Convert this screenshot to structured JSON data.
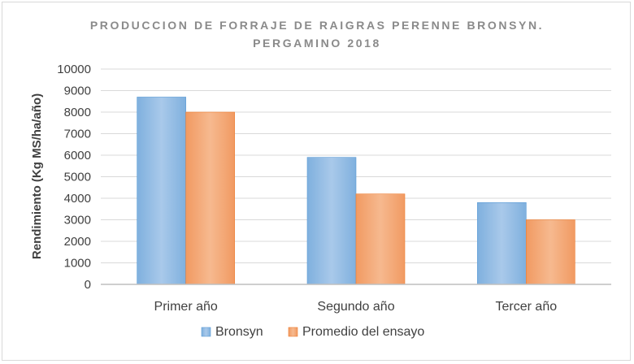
{
  "chart_data": {
    "type": "bar",
    "title_lines": [
      "PRODUCCION DE FORRAJE DE RAIGRAS PERENNE BRONSYN.",
      "PERGAMINO 2018"
    ],
    "xlabel": "",
    "ylabel": "Rendimiento (Kg MS/ha/año)",
    "ylim": [
      0,
      10000
    ],
    "yticks": [
      0,
      1000,
      2000,
      3000,
      4000,
      5000,
      6000,
      7000,
      8000,
      9000,
      10000
    ],
    "grid": true,
    "legend_position": "bottom",
    "categories": [
      "Primer año",
      "Segundo año",
      "Tercer año"
    ],
    "series": [
      {
        "name": "Bronsyn",
        "color": "#5b9bd5",
        "values": [
          8700,
          5900,
          3800
        ]
      },
      {
        "name": "Promedio del ensayo",
        "color": "#ed7d31",
        "values": [
          8000,
          4200,
          3000
        ]
      }
    ]
  }
}
